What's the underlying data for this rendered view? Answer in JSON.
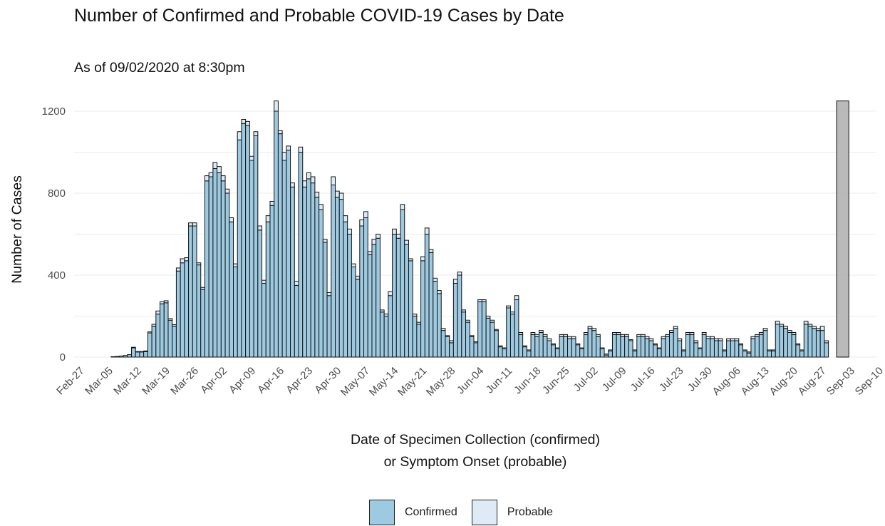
{
  "title": "Number of Confirmed and Probable COVID-19 Cases by Date",
  "subtitle": "As of 09/02/2020 at 8:30pm",
  "colors": {
    "confirmed": "#9ecae1",
    "probable": "#deebf7",
    "pending": "#b3b3b3",
    "outline": "#111111",
    "grid": "#ebebeb"
  },
  "chart_data": {
    "type": "bar",
    "stacked": true,
    "title": "Number of Confirmed and Probable COVID-19 Cases by Date",
    "subtitle": "As of 09/02/2020 at 8:30pm",
    "xlabel": "Date of Specimen Collection (confirmed)\nor Symptom Onset (probable)",
    "xlabel_lines": [
      "Date of Specimen Collection (confirmed)",
      "or Symptom Onset (probable)"
    ],
    "ylabel": "Number of Cases",
    "ylim": [
      0,
      1250
    ],
    "yticks": [
      0,
      400,
      800,
      1200
    ],
    "x_start": "2020-03-06",
    "x_tick_labels": [
      "Feb-27",
      "Mar-05",
      "Mar-12",
      "Mar-19",
      "Mar-26",
      "Apr-02",
      "Apr-09",
      "Apr-16",
      "Apr-23",
      "Apr-30",
      "May-07",
      "May-14",
      "May-21",
      "May-28",
      "Jun-04",
      "Jun-11",
      "Jun-18",
      "Jun-25",
      "Jul-02",
      "Jul-09",
      "Jul-16",
      "Jul-23",
      "Jul-30",
      "Aug-06",
      "Aug-13",
      "Aug-20",
      "Aug-27",
      "Sep-03",
      "Sep-10"
    ],
    "grid": true,
    "legend_position": "bottom",
    "series": [
      {
        "name": "Confirmed",
        "values": [
          2,
          3,
          5,
          8,
          12,
          45,
          25,
          25,
          27,
          118,
          150,
          210,
          260,
          265,
          180,
          150,
          420,
          460,
          470,
          640,
          640,
          450,
          330,
          860,
          880,
          920,
          900,
          860,
          800,
          660,
          440,
          1060,
          1140,
          1130,
          960,
          1080,
          620,
          360,
          660,
          740,
          1200,
          1090,
          960,
          1010,
          830,
          350,
          1000,
          830,
          870,
          850,
          780,
          720,
          560,
          300,
          840,
          780,
          770,
          660,
          600,
          440,
          380,
          640,
          680,
          500,
          550,
          580,
          220,
          200,
          300,
          600,
          580,
          720,
          550,
          470,
          200,
          160,
          470,
          600,
          510,
          370,
          310,
          130,
          100,
          70,
          360,
          400,
          220,
          170,
          100,
          70,
          270,
          270,
          190,
          170,
          130,
          50,
          40,
          240,
          210,
          280,
          110,
          50,
          30,
          110,
          100,
          120,
          100,
          80,
          60,
          40,
          100,
          100,
          90,
          90,
          60,
          40,
          110,
          140,
          130,
          100,
          40,
          10,
          30,
          110,
          110,
          100,
          100,
          80,
          30,
          100,
          100,
          90,
          80,
          60,
          40,
          90,
          100,
          120,
          140,
          80,
          30,
          110,
          110,
          70,
          40,
          110,
          90,
          90,
          80,
          80,
          30,
          80,
          80,
          80,
          60,
          30,
          20,
          90,
          100,
          110,
          130,
          30,
          30,
          160,
          150,
          140,
          120,
          110,
          60,
          30,
          160,
          150,
          140,
          130,
          130,
          70,
          0
        ],
        "probable": false
      },
      {
        "name": "Probable",
        "values": [
          0,
          0,
          0,
          0,
          0,
          3,
          2,
          2,
          3,
          5,
          10,
          15,
          10,
          10,
          8,
          8,
          15,
          20,
          15,
          15,
          15,
          10,
          10,
          25,
          20,
          30,
          30,
          25,
          20,
          20,
          15,
          40,
          20,
          20,
          20,
          20,
          20,
          15,
          30,
          20,
          50,
          15,
          40,
          20,
          20,
          20,
          25,
          30,
          30,
          30,
          25,
          25,
          15,
          15,
          40,
          30,
          30,
          30,
          25,
          15,
          15,
          30,
          30,
          15,
          25,
          20,
          10,
          10,
          20,
          25,
          20,
          25,
          20,
          10,
          10,
          10,
          20,
          30,
          15,
          15,
          15,
          10,
          5,
          10,
          20,
          15,
          10,
          10,
          5,
          5,
          10,
          10,
          10,
          10,
          5,
          5,
          5,
          10,
          10,
          20,
          10,
          5,
          5,
          10,
          10,
          10,
          10,
          10,
          5,
          5,
          10,
          10,
          10,
          10,
          5,
          5,
          10,
          10,
          10,
          10,
          5,
          5,
          5,
          10,
          10,
          10,
          10,
          5,
          5,
          10,
          10,
          10,
          10,
          5,
          5,
          10,
          10,
          10,
          10,
          10,
          5,
          10,
          10,
          10,
          5,
          10,
          10,
          10,
          10,
          10,
          5,
          10,
          10,
          10,
          5,
          5,
          5,
          10,
          10,
          10,
          10,
          5,
          5,
          15,
          10,
          10,
          10,
          10,
          5,
          5,
          15,
          10,
          10,
          10,
          20,
          10,
          0
        ],
        "probable": true
      }
    ],
    "pending_period": {
      "start": "2020-08-31",
      "end": "2020-09-02",
      "value": 1250
    }
  },
  "legend": {
    "confirmed_label": "Confirmed",
    "probable_label": "Probable"
  }
}
